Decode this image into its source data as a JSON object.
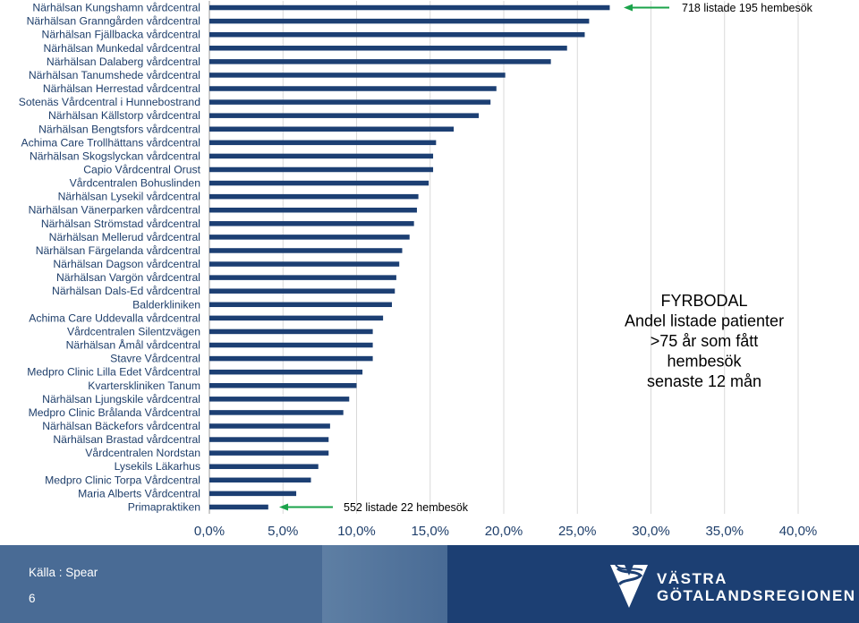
{
  "chart_data": {
    "type": "bar",
    "orientation": "horizontal",
    "categories": [
      "Närhälsan Kungshamn vårdcentral",
      "Närhälsan Granngården vårdcentral",
      "Närhälsan Fjällbacka vårdcentral",
      "Närhälsan Munkedal vårdcentral",
      "Närhälsan Dalaberg vårdcentral",
      "Närhälsan Tanumshede vårdcentral",
      "Närhälsan Herrestad vårdcentral",
      "Sotenäs Vårdcentral i Hunnebostrand",
      "Närhälsan Källstorp vårdcentral",
      "Närhälsan Bengtsfors vårdcentral",
      "Achima Care Trollhättans vårdcentral",
      "Närhälsan Skogslyckan vårdcentral",
      "Capio Vårdcentral Orust",
      "Vårdcentralen Bohuslinden",
      "Närhälsan Lysekil vårdcentral",
      "Närhälsan Vänerparken vårdcentral",
      "Närhälsan Strömstad vårdcentral",
      "Närhälsan Mellerud vårdcentral",
      "Närhälsan Färgelanda vårdcentral",
      "Närhälsan Dagson vårdcentral",
      "Närhälsan Vargön vårdcentral",
      "Närhälsan Dals-Ed vårdcentral",
      "Balderkliniken",
      "Achima Care Uddevalla vårdcentral",
      "Vårdcentralen Silentzvägen",
      "Närhälsan Åmål vårdcentral",
      "Stavre Vårdcentral",
      "Medpro Clinic Lilla Edet Vårdcentral",
      "Kvarterskliniken Tanum",
      "Närhälsan Ljungskile vårdcentral",
      "Medpro Clinic Brålanda Vårdcentral",
      "Närhälsan Bäckefors vårdcentral",
      "Närhälsan Brastad vårdcentral",
      "Vårdcentralen Nordstan",
      "Lysekils Läkarhus",
      "Medpro Clinic Torpa Vårdcentral",
      "Maria Alberts Vårdcentral",
      "Primapraktiken"
    ],
    "values": [
      27.2,
      25.8,
      25.5,
      24.3,
      23.2,
      20.1,
      19.5,
      19.1,
      18.3,
      16.6,
      15.4,
      15.2,
      15.2,
      14.9,
      14.2,
      14.1,
      13.9,
      13.6,
      13.1,
      12.9,
      12.7,
      12.6,
      12.4,
      11.8,
      11.1,
      11.1,
      11.1,
      10.4,
      10.0,
      9.5,
      9.1,
      8.2,
      8.1,
      8.1,
      7.4,
      6.9,
      5.9,
      4.0
    ],
    "x_ticks": [
      "0,0%",
      "5,0%",
      "10,0%",
      "15,0%",
      "20,0%",
      "25,0%",
      "30,0%",
      "35,0%",
      "40,0%"
    ],
    "xlim": [
      0,
      40
    ],
    "bar_color": "#1c3f73",
    "grid": "vertical",
    "annotations": {
      "top": "718 listade 195 hembesök",
      "bottom": "552 listade 22 hembesök",
      "arrow_color": "#1aa34a"
    },
    "side_text": [
      "FYRBODAL",
      "Andel listade patienter",
      ">75 år som fått",
      "hembesök",
      "senaste 12 mån"
    ]
  },
  "footer": {
    "source": "Källa : Spear",
    "page_number": "6",
    "logo_line1": "VÄSTRA",
    "logo_line2": "GÖTALANDSREGIONEN",
    "logo_icon": "vgr-logo-icon"
  }
}
